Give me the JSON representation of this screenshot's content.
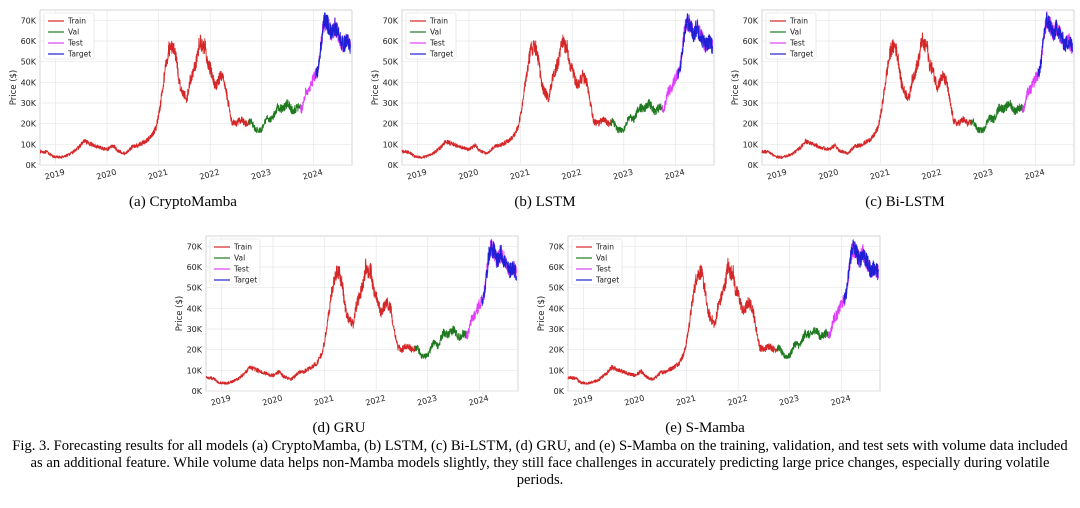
{
  "chart_data": {
    "type": "line",
    "series_names": [
      "Train",
      "Val",
      "Test",
      "Target"
    ],
    "series_colors": {
      "Train": "#d62728",
      "Val": "#1f7a1f",
      "Test": "#e040fb",
      "Target": "#1f1fd6"
    },
    "ylabel": "Price ($)",
    "ylim": [
      0,
      75000
    ],
    "yticks": [
      "0K",
      "10K",
      "20K",
      "30K",
      "40K",
      "50K",
      "60K",
      "70K"
    ],
    "xlim": [
      2018.7,
      2024.75
    ],
    "xticks": [
      "2019",
      "2020",
      "2021",
      "2022",
      "2023",
      "2024"
    ],
    "grid": true,
    "legend_position": "top-left",
    "price_curve": {
      "x": [
        2018.7,
        2018.85,
        2018.95,
        2019.1,
        2019.2,
        2019.3,
        2019.45,
        2019.55,
        2019.7,
        2019.85,
        2020.0,
        2020.12,
        2020.2,
        2020.35,
        2020.5,
        2020.6,
        2020.75,
        2020.85,
        2020.95,
        2021.0,
        2021.05,
        2021.12,
        2021.2,
        2021.28,
        2021.35,
        2021.4,
        2021.45,
        2021.5,
        2021.55,
        2021.6,
        2021.67,
        2021.75,
        2021.8,
        2021.85,
        2021.9,
        2021.95,
        2022.0,
        2022.05,
        2022.1,
        2022.2,
        2022.28,
        2022.35,
        2022.42,
        2022.5,
        2022.6,
        2022.7,
        2022.8,
        2022.88,
        2022.95,
        2023.0,
        2023.1,
        2023.2,
        2023.3,
        2023.4,
        2023.5,
        2023.6,
        2023.7,
        2023.78,
        2023.85,
        2023.92,
        2024.0,
        2024.08,
        2024.12,
        2024.18,
        2024.22,
        2024.28,
        2024.35,
        2024.42,
        2024.5,
        2024.58,
        2024.65,
        2024.72
      ],
      "y": [
        6500,
        6200,
        4000,
        3700,
        4500,
        5500,
        8500,
        11500,
        10000,
        8500,
        7500,
        9500,
        7000,
        5500,
        9000,
        9500,
        11500,
        13500,
        18000,
        24000,
        32000,
        45000,
        56000,
        58000,
        50000,
        40000,
        36000,
        34000,
        32000,
        40000,
        45000,
        52000,
        61000,
        57000,
        58000,
        48000,
        47000,
        42000,
        38000,
        43000,
        40000,
        30000,
        21000,
        20000,
        22000,
        20000,
        21000,
        17000,
        16800,
        17000,
        23000,
        22000,
        28000,
        27000,
        30000,
        26000,
        28000,
        27000,
        35000,
        37000,
        42000,
        45000,
        52000,
        65000,
        70000,
        68000,
        63000,
        67000,
        62000,
        58000,
        60000,
        57000
      ],
      "segments": {
        "Train": [
          2018.7,
          2022.75
        ],
        "Val": [
          2022.75,
          2023.75
        ],
        "Test": [
          2023.75,
          2024.72
        ],
        "Target": [
          2024.05,
          2024.72
        ]
      }
    },
    "panels": [
      {
        "id": "a",
        "caption": "(a) CryptoMamba"
      },
      {
        "id": "b",
        "caption": "(b) LSTM"
      },
      {
        "id": "c",
        "caption": "(c) Bi-LSTM"
      },
      {
        "id": "d",
        "caption": "(d) GRU"
      },
      {
        "id": "e",
        "caption": "(e) S-Mamba"
      }
    ]
  },
  "figure_caption": "Fig. 3.  Forecasting results for all models (a) CryptoMamba, (b) LSTM, (c) Bi-LSTM, (d) GRU, and (e) S-Mamba on the training, validation, and test sets with volume data included as an additional feature. While volume data helps non-Mamba models slightly, they still face challenges in accurately predicting large price changes, especially during volatile periods."
}
